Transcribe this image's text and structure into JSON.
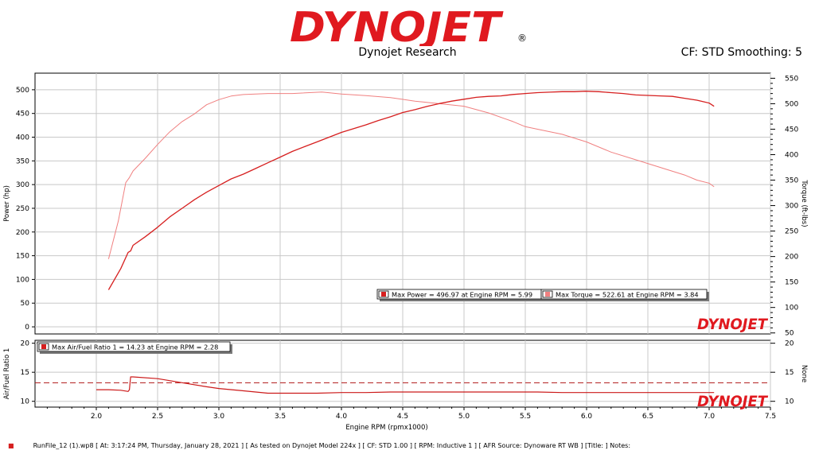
{
  "brand": {
    "logo_text": "DYNOJET",
    "registered": "®"
  },
  "header": {
    "subtitle": "Dynojet Research",
    "cf_smoothing": "CF: STD Smoothing: 5"
  },
  "colors": {
    "power": "#d61f1f",
    "torque": "#f08080",
    "afr": "#cc1a1a",
    "grid": "#c8c8c8",
    "panel_bg": "#ffffff",
    "frame": "#000000"
  },
  "chart_data": [
    {
      "type": "line",
      "ylabel": "Power (hp)",
      "y2label": "Torque (ft-lbs)",
      "ylim": [
        -15,
        535
      ],
      "y2lim": [
        48,
        560
      ],
      "yticks": [
        0,
        50,
        100,
        150,
        200,
        250,
        300,
        350,
        400,
        450,
        500
      ],
      "y2ticks": [
        50,
        100,
        150,
        200,
        250,
        300,
        350,
        400,
        450,
        500,
        550
      ],
      "grid": true,
      "legend": [
        "Max Power = 496.97 at Engine RPM = 5.99",
        "Max Torque = 522.61 at Engine RPM = 3.84"
      ],
      "watermark": "DYNOJET",
      "series": [
        {
          "name": "Power",
          "axis": "left",
          "x": [
            2.1,
            2.2,
            2.26,
            2.28,
            2.3,
            2.4,
            2.5,
            2.6,
            2.7,
            2.8,
            2.9,
            3.0,
            3.1,
            3.2,
            3.3,
            3.4,
            3.5,
            3.6,
            3.7,
            3.8,
            3.9,
            4.0,
            4.1,
            4.2,
            4.3,
            4.4,
            4.5,
            4.6,
            4.7,
            4.8,
            4.9,
            5.0,
            5.1,
            5.2,
            5.3,
            5.4,
            5.5,
            5.6,
            5.7,
            5.8,
            5.9,
            5.99,
            6.1,
            6.2,
            6.3,
            6.4,
            6.5,
            6.6,
            6.7,
            6.8,
            6.9,
            7.0,
            7.04
          ],
          "values": [
            78,
            123,
            157,
            160,
            172,
            190,
            210,
            232,
            250,
            268,
            284,
            298,
            312,
            322,
            334,
            346,
            358,
            370,
            380,
            390,
            400,
            410,
            418,
            426,
            435,
            443,
            452,
            458,
            465,
            471,
            476,
            480,
            484,
            486,
            487,
            490,
            492,
            494,
            495,
            496,
            496,
            497,
            496,
            494,
            492,
            489,
            488,
            487,
            486,
            482,
            478,
            472,
            465
          ]
        },
        {
          "name": "Torque",
          "axis": "right",
          "x": [
            2.1,
            2.18,
            2.24,
            2.27,
            2.3,
            2.4,
            2.5,
            2.6,
            2.7,
            2.8,
            2.9,
            3.0,
            3.1,
            3.2,
            3.4,
            3.6,
            3.84,
            4.0,
            4.2,
            4.4,
            4.6,
            4.8,
            5.0,
            5.2,
            5.4,
            5.5,
            5.6,
            5.8,
            6.0,
            6.2,
            6.4,
            6.6,
            6.8,
            6.9,
            7.0,
            7.04
          ],
          "values": [
            195,
            270,
            345,
            355,
            368,
            393,
            420,
            445,
            465,
            480,
            498,
            508,
            515,
            518,
            520,
            520,
            523,
            519,
            516,
            512,
            505,
            500,
            495,
            482,
            465,
            455,
            450,
            440,
            425,
            405,
            390,
            375,
            360,
            350,
            344,
            337
          ]
        }
      ]
    },
    {
      "type": "line",
      "ylabel": "Air/Fuel Ratio 1",
      "y2label": "None",
      "xlabel": "Engine RPM (rpmx1000)",
      "xlim": [
        1.5,
        7.5
      ],
      "xticks": [
        2.0,
        2.5,
        3.0,
        3.5,
        4.0,
        4.5,
        5.0,
        5.5,
        6.0,
        6.5,
        7.0,
        7.5
      ],
      "ylim": [
        9,
        20.5
      ],
      "yticks": [
        10,
        15,
        20
      ],
      "y2ticks": [
        10,
        15,
        20
      ],
      "grid": true,
      "legend": [
        "Max Air/Fuel Ratio 1 = 14.23 at Engine RPM = 2.28"
      ],
      "reference_line": 13.2,
      "watermark": "DYNOJET",
      "series": [
        {
          "name": "Air/Fuel Ratio 1",
          "axis": "left",
          "x": [
            2.0,
            2.1,
            2.2,
            2.26,
            2.27,
            2.28,
            2.3,
            2.5,
            2.7,
            2.9,
            3.0,
            3.2,
            3.4,
            3.6,
            3.8,
            4.0,
            4.2,
            4.4,
            4.6,
            4.8,
            5.0,
            5.2,
            5.4,
            5.6,
            5.8,
            6.0,
            6.2,
            6.4,
            6.6,
            6.8,
            7.0,
            7.04
          ],
          "values": [
            12.0,
            12.0,
            11.9,
            11.7,
            12.0,
            14.2,
            14.2,
            13.9,
            13.2,
            12.5,
            12.2,
            11.8,
            11.4,
            11.4,
            11.4,
            11.5,
            11.5,
            11.6,
            11.6,
            11.6,
            11.6,
            11.6,
            11.6,
            11.6,
            11.5,
            11.5,
            11.5,
            11.5,
            11.5,
            11.5,
            11.5,
            11.5
          ]
        }
      ]
    }
  ],
  "footer": {
    "marker": "■",
    "text": "RunFile_12 (1).wp8 [ At: 3:17:24 PM, Thursday, January 28, 2021 ] [ As tested on Dynojet Model 224x ] [ CF: STD 1.00 ] [ RPM: Inductive 1 ] [ AFR Source: Dynoware RT WB ] [Title: ]  Notes:"
  }
}
